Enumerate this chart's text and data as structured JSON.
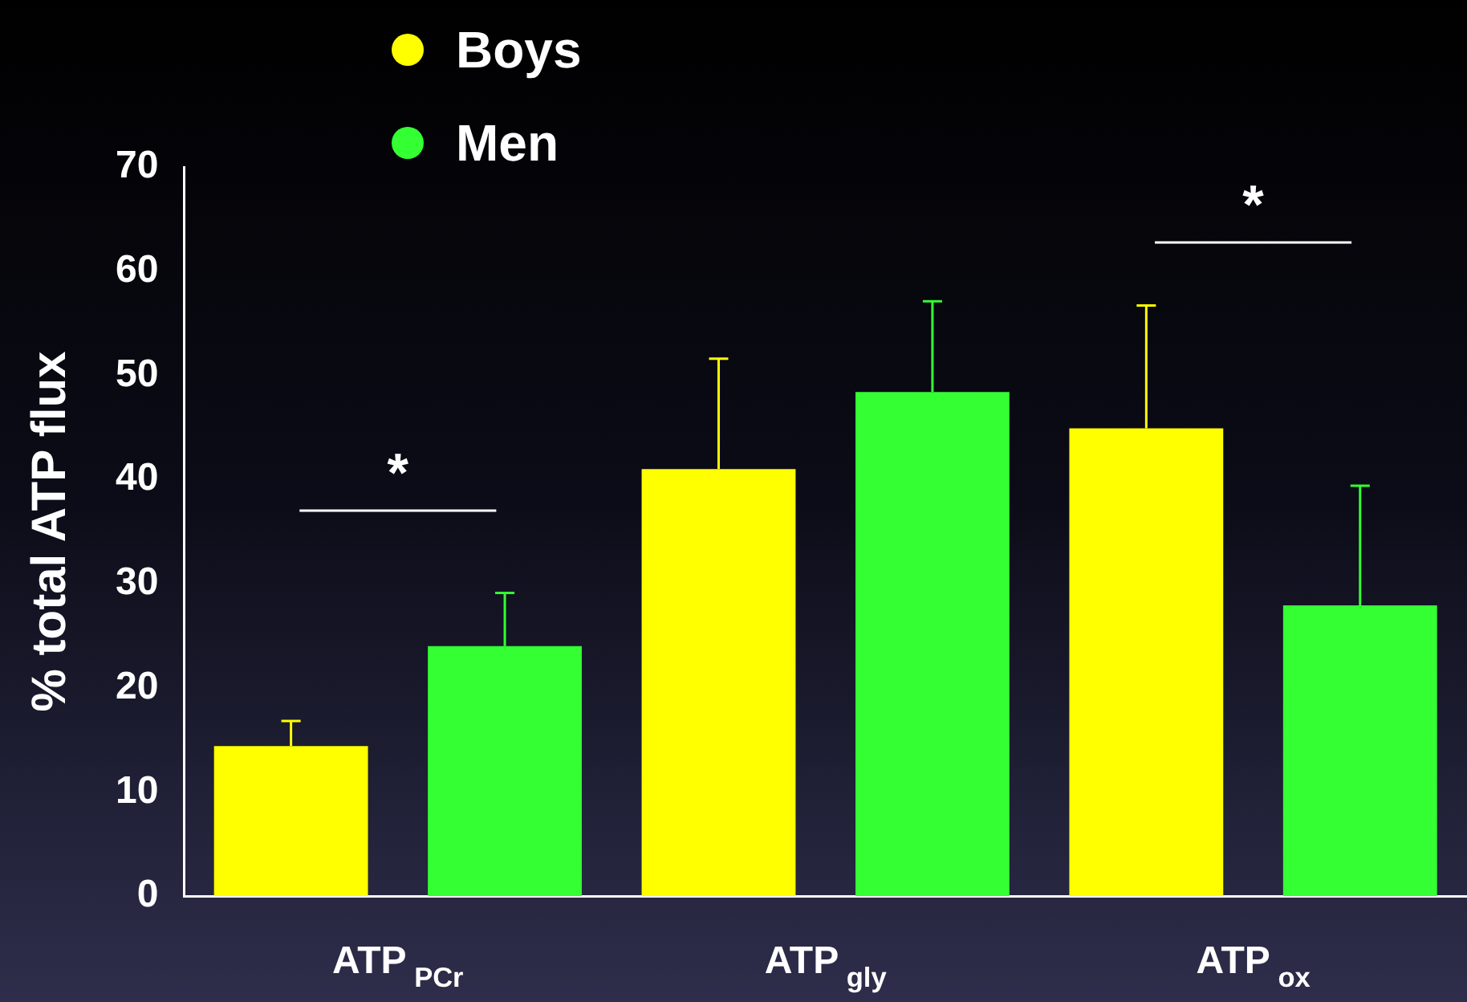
{
  "chart_data": {
    "type": "bar",
    "ylabel": "% total ATP flux",
    "categories": [
      "ATP$_{PCr}$",
      "ATP$_{gly}$",
      "ATP$_{ox}$"
    ],
    "series": [
      {
        "name": "Boys",
        "color": "#ffff00",
        "values": [
          14.4,
          41.0,
          44.9
        ],
        "errors": [
          [
            14.4,
            16.8
          ],
          [
            41.0,
            51.6
          ],
          [
            44.9,
            56.7
          ]
        ]
      },
      {
        "name": "Men",
        "color": "#33ff33",
        "values": [
          24.0,
          48.4,
          27.9
        ],
        "errors": [
          [
            24.0,
            29.1
          ],
          [
            48.4,
            57.1
          ],
          [
            27.9,
            39.4
          ]
        ]
      }
    ],
    "ylim": [
      0,
      70
    ],
    "yticks": [
      0,
      10,
      20,
      30,
      40,
      50,
      60,
      70
    ],
    "legend": "top",
    "annotations": [
      "*",
      "*"
    ]
  }
}
